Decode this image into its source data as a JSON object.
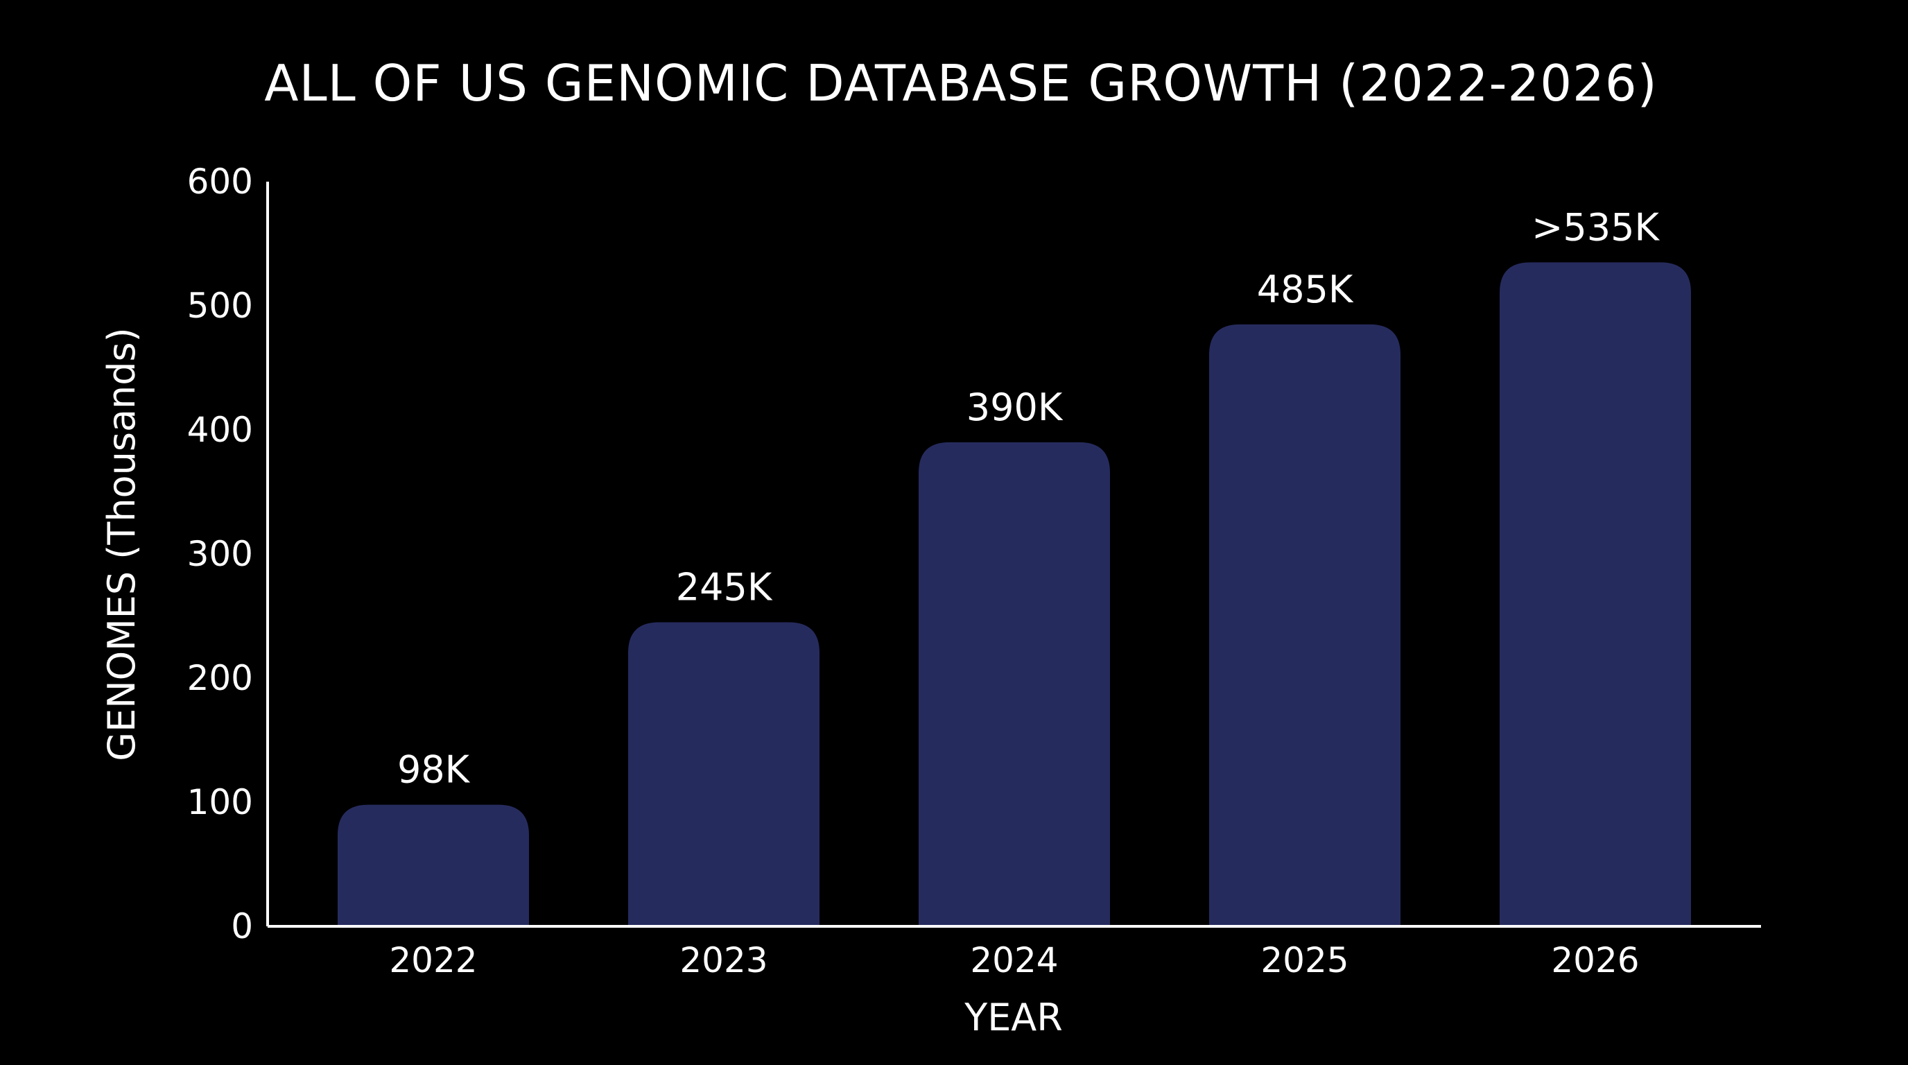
{
  "chart_data": {
    "type": "bar",
    "title": "ALL OF US GENOMIC DATABASE GROWTH (2022-2026)",
    "xlabel": "YEAR",
    "ylabel": "GENOMES (Thousands)",
    "categories": [
      "2022",
      "2023",
      "2024",
      "2025",
      "2026"
    ],
    "values": [
      98,
      245,
      390,
      485,
      535
    ],
    "data_labels": [
      "98K",
      "245K",
      "390K",
      "485K",
      ">535K"
    ],
    "ylim": [
      0,
      600
    ],
    "yticks": [
      0,
      100,
      200,
      300,
      400,
      500,
      600
    ],
    "grid": false,
    "legend": "none",
    "colors": {
      "background": "#000000",
      "bar": "#262b5e",
      "axis": "#ffffff",
      "text": "#ffffff"
    }
  }
}
